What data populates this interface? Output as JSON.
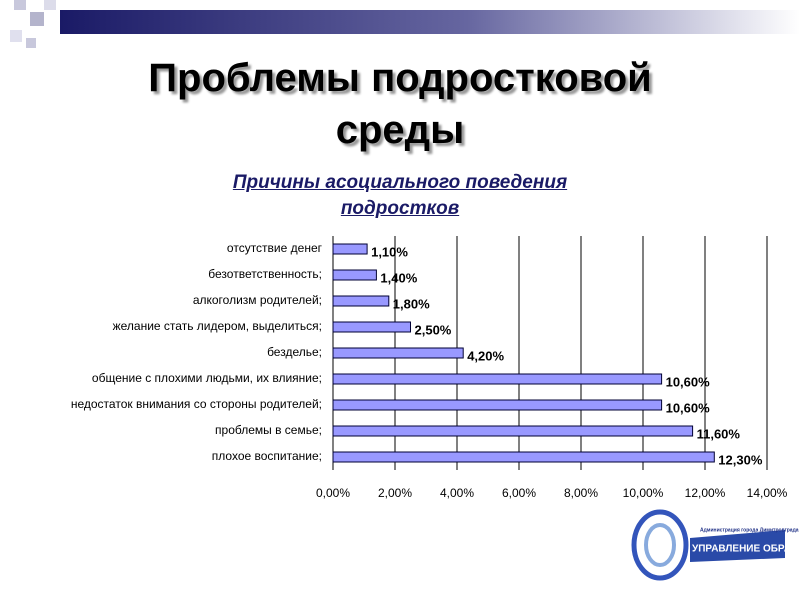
{
  "chart_data": {
    "type": "barh",
    "slide_title": "Проблемы подростковой среды",
    "title": "Причины асоциального поведения подростков",
    "categories": [
      "отсутствие денег",
      "безответственность;",
      "алкоголизм родителей;",
      "желание стать лидером, выделиться;",
      "безделье;",
      "общение с плохими людьми, их влияние;",
      "недостаток внимания со стороны родителей;",
      "проблемы в семье;",
      "плохое воспитание;"
    ],
    "values": [
      1.1,
      1.4,
      1.8,
      2.5,
      4.2,
      10.6,
      10.6,
      11.6,
      12.3
    ],
    "value_labels": [
      "1,10%",
      "1,40%",
      "1,80%",
      "2,50%",
      "4,20%",
      "10,60%",
      "10,60%",
      "11,60%",
      "12,30%"
    ],
    "color": "#9999ff",
    "xlim": [
      0,
      14
    ],
    "xticks": [
      {
        "value": 0,
        "label": "0,00%"
      },
      {
        "value": 2,
        "label": "2,00%"
      },
      {
        "value": 4,
        "label": "4,00%"
      },
      {
        "value": 6,
        "label": "6,00%"
      },
      {
        "value": 8,
        "label": "8,00%"
      },
      {
        "value": 10,
        "label": "10,00%"
      },
      {
        "value": 12,
        "label": "12,00%"
      },
      {
        "value": 14,
        "label": "14,00%"
      }
    ],
    "grid": true
  },
  "logo": {
    "line1": "Администрация города Димитровграда",
    "line2": "УПРАВЛЕНИЕ ОБРАЗОВАНИЯ"
  }
}
